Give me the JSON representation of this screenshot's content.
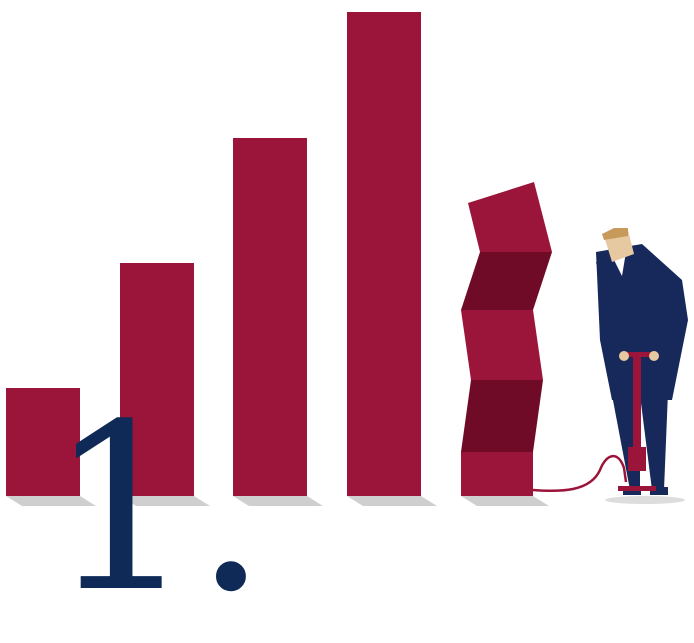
{
  "colors": {
    "bar": "#9b1439",
    "bar_dark": "#6f0a27",
    "shadow": "#cfcfcf",
    "suit": "#17295a",
    "skin": "#e7c9a1",
    "hair": "#c79a5b",
    "numeral": "#0f2a57"
  },
  "illustration": {
    "numeral_text": "1.",
    "bars": [
      "bar-1",
      "bar-2",
      "bar-3",
      "bar-4"
    ],
    "deflated_bar": "collapsing-bar",
    "figure": "man-with-pump"
  }
}
